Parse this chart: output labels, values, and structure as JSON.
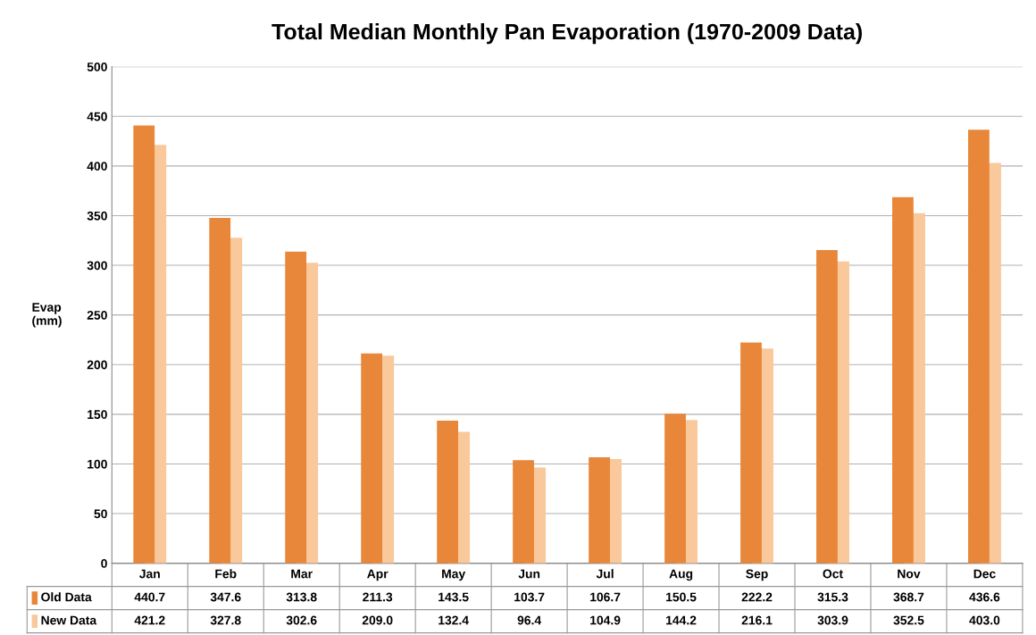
{
  "chart_data": {
    "type": "bar",
    "title": "Total Median Monthly Pan Evaporation (1970-2009 Data)",
    "ylabel": "Evap\n(mm)",
    "categories": [
      "Jan",
      "Feb",
      "Mar",
      "Apr",
      "May",
      "Jun",
      "Jul",
      "Aug",
      "Sep",
      "Oct",
      "Nov",
      "Dec"
    ],
    "series": [
      {
        "name": "Old Data",
        "color": "#e8873a",
        "values": [
          440.7,
          347.6,
          313.8,
          211.3,
          143.5,
          103.7,
          106.7,
          150.5,
          222.2,
          315.3,
          368.7,
          436.6
        ],
        "value_labels": [
          "440.7",
          "347.6",
          "313.8",
          "211.3",
          "143.5",
          "103.7",
          "106.7",
          "150.5",
          "222.2",
          "315.3",
          "368.7",
          "436.6"
        ]
      },
      {
        "name": "New Data",
        "color": "#f9c89b",
        "values": [
          421.2,
          327.8,
          302.6,
          209.0,
          132.4,
          96.4,
          104.9,
          144.2,
          216.1,
          303.9,
          352.5,
          403.0
        ],
        "value_labels": [
          "421.2",
          "327.8",
          "302.6",
          "209.0",
          "132.4",
          "96.4",
          "104.9",
          "144.2",
          "216.1",
          "303.9",
          "352.5",
          "403.0"
        ]
      }
    ],
    "ylim": [
      0,
      500
    ],
    "yticks": [
      0,
      50,
      100,
      150,
      200,
      250,
      300,
      350,
      400,
      450,
      500
    ],
    "grid": "y",
    "legend": "bottom"
  }
}
